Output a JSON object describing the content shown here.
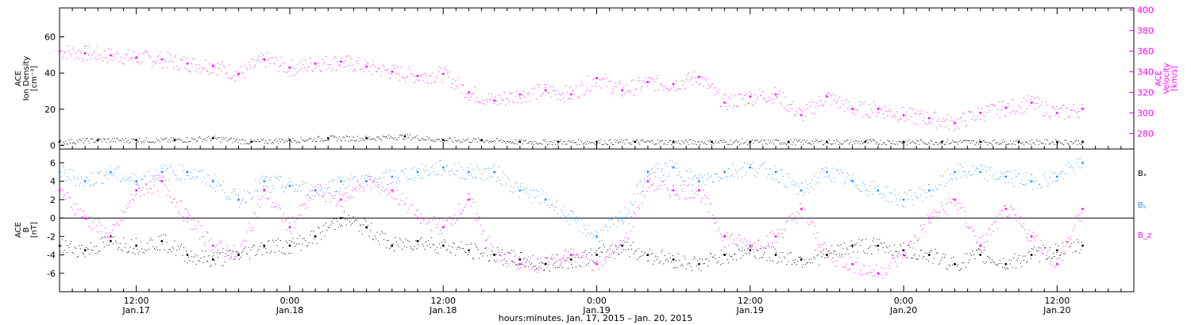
{
  "colors": {
    "density": "#000000",
    "velocity": "#ff00ff",
    "bx": "#000000",
    "by": "#1e90ff",
    "bz": "#ff00ff",
    "frame": "#000000"
  },
  "chart_data": [
    {
      "type": "scatter",
      "panel": "top",
      "ylabel_left": [
        "ACE",
        "Ion Density",
        "[cm⁻³]"
      ],
      "ylabel_right": [
        "ACE",
        "Velocity",
        "[km/s]"
      ],
      "yticks_left": [
        0,
        20,
        40,
        60
      ],
      "ylim_left": [
        -2,
        76
      ],
      "yticks_right": [
        280,
        300,
        320,
        340,
        360,
        380,
        400
      ],
      "ylim_right": [
        265,
        402
      ],
      "x_range_hours": [
        6,
        90
      ],
      "series": [
        {
          "name": "Ion Density",
          "axis": "left",
          "x": [
            6,
            9,
            12,
            15,
            18,
            21,
            24,
            27,
            30,
            33,
            36,
            39,
            42,
            45,
            48,
            51,
            54,
            57,
            60,
            63,
            66,
            69,
            72,
            75,
            78,
            81,
            84,
            86
          ],
          "values": [
            2,
            3,
            3,
            3,
            4,
            2,
            3,
            4,
            4,
            5,
            3,
            3,
            2,
            2,
            2,
            2,
            2,
            2,
            2,
            2,
            2,
            2,
            2,
            2,
            2,
            2,
            2,
            2
          ]
        },
        {
          "name": "Velocity",
          "axis": "right",
          "x": [
            6,
            8,
            10,
            12,
            14,
            16,
            18,
            20,
            22,
            24,
            26,
            28,
            30,
            32,
            34,
            36,
            38,
            40,
            42,
            44,
            46,
            48,
            50,
            52,
            54,
            56,
            58,
            60,
            62,
            64,
            66,
            68,
            70,
            72,
            74,
            76,
            78,
            80,
            82,
            84,
            86
          ],
          "values": [
            360,
            358,
            356,
            354,
            352,
            348,
            346,
            338,
            352,
            344,
            348,
            350,
            345,
            340,
            336,
            338,
            320,
            312,
            318,
            322,
            318,
            334,
            322,
            330,
            328,
            335,
            310,
            316,
            318,
            298,
            316,
            304,
            304,
            298,
            295,
            290,
            300,
            305,
            310,
            300,
            304
          ]
        }
      ]
    },
    {
      "type": "scatter",
      "panel": "bottom",
      "ylabel": [
        "ACE",
        "B",
        "[nT]"
      ],
      "yticks": [
        -6,
        -4,
        -2,
        0,
        2,
        4,
        6
      ],
      "ylim": [
        -8,
        7.5
      ],
      "x_range_hours": [
        6,
        90
      ],
      "legend": [
        "Bₓ",
        "Bᵧ",
        "B_z"
      ],
      "series": [
        {
          "name": "Bₓ",
          "x": [
            6,
            8,
            10,
            12,
            14,
            16,
            18,
            20,
            22,
            24,
            26,
            28,
            30,
            32,
            34,
            36,
            38,
            40,
            42,
            44,
            46,
            48,
            50,
            52,
            54,
            56,
            58,
            60,
            62,
            64,
            66,
            68,
            70,
            72,
            74,
            76,
            78,
            80,
            82,
            84,
            86
          ],
          "values": [
            -3,
            -3.5,
            -2.5,
            -3,
            -2.5,
            -4,
            -4.5,
            -4,
            -3,
            -3,
            -2,
            0,
            -1,
            -3,
            -2.5,
            -3,
            -3.5,
            -4,
            -4.5,
            -5,
            -4.5,
            -4,
            -3,
            -4,
            -4.5,
            -5,
            -4,
            -3.5,
            -4,
            -4.5,
            -4,
            -3,
            -3,
            -3.5,
            -4,
            -5,
            -4,
            -5,
            -4,
            -3.5,
            -3
          ]
        },
        {
          "name": "Bᵧ",
          "x": [
            6,
            8,
            10,
            12,
            14,
            16,
            18,
            20,
            22,
            24,
            26,
            28,
            30,
            32,
            34,
            36,
            38,
            40,
            42,
            44,
            46,
            48,
            50,
            52,
            54,
            56,
            58,
            60,
            62,
            64,
            66,
            68,
            70,
            72,
            74,
            76,
            78,
            80,
            82,
            84,
            86
          ],
          "values": [
            5,
            4,
            5,
            4,
            5,
            5,
            4,
            2,
            4,
            3.5,
            3,
            4,
            4,
            4.5,
            5,
            5.5,
            5,
            5,
            3,
            2,
            0,
            -2,
            0,
            5,
            5.5,
            4,
            5,
            5.5,
            5,
            3,
            5,
            4,
            3,
            2,
            3,
            5,
            5,
            4.5,
            4,
            4.5,
            6
          ]
        },
        {
          "name": "B_z",
          "x": [
            6,
            8,
            10,
            12,
            14,
            16,
            18,
            20,
            22,
            24,
            26,
            28,
            30,
            32,
            34,
            36,
            38,
            40,
            42,
            44,
            46,
            48,
            50,
            52,
            54,
            56,
            58,
            60,
            62,
            64,
            66,
            68,
            70,
            72,
            74,
            76,
            78,
            80,
            82,
            84,
            86
          ],
          "values": [
            3,
            0,
            -2,
            3,
            4,
            0,
            -3,
            -4,
            3,
            -1,
            3,
            2,
            4,
            3,
            0,
            -1,
            2,
            -4,
            -5,
            -5,
            -4,
            -5,
            -3,
            4,
            3,
            3,
            -2,
            -3,
            -2,
            1,
            -4,
            -5,
            -6,
            -4,
            0,
            2,
            -3,
            1,
            -2,
            -5,
            1
          ]
        }
      ]
    }
  ],
  "x_axis": {
    "ticks": [
      {
        "hour": 12,
        "time": "12:00",
        "day": "Jan.17"
      },
      {
        "hour": 24,
        "time": "0:00",
        "day": "Jan.18"
      },
      {
        "hour": 36,
        "time": "12:00",
        "day": "Jan.18"
      },
      {
        "hour": 48,
        "time": "0:00",
        "day": "Jan.19"
      },
      {
        "hour": 60,
        "time": "12:00",
        "day": "Jan.19"
      },
      {
        "hour": 72,
        "time": "0:00",
        "day": "Jan.20"
      },
      {
        "hour": 84,
        "time": "12:00",
        "day": "Jan.20"
      }
    ],
    "label": "hours:minutes, Jan. 17, 2015 – Jan. 20, 2015"
  }
}
